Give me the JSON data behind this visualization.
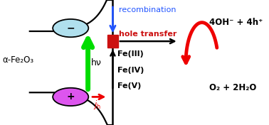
{
  "bg_color": "#ffffff",
  "alpha_fe2o3_label": "α-Fe₂O₃",
  "hv_label": "hν",
  "recombination_label": "recombination",
  "hole_transfer_label": "hole transfer",
  "fe_labels": [
    "Fe(III)",
    "Fe(IV)",
    "Fe(V)"
  ],
  "reaction_top": "4OH⁻ + 4h⁺",
  "reaction_bottom": "O₂ + 2H₂O",
  "electron_circle_color": "#b0e0ee",
  "hole_circle_color": "#dd55ee",
  "green_arrow_color": "#00dd00",
  "red_arrow_color": "#ee0000",
  "blue_arrow_color": "#2255ff",
  "black_color": "#000000",
  "red_rect_color": "#cc1111",
  "vline_x": 0.455,
  "figw": 3.78,
  "figh": 1.76
}
